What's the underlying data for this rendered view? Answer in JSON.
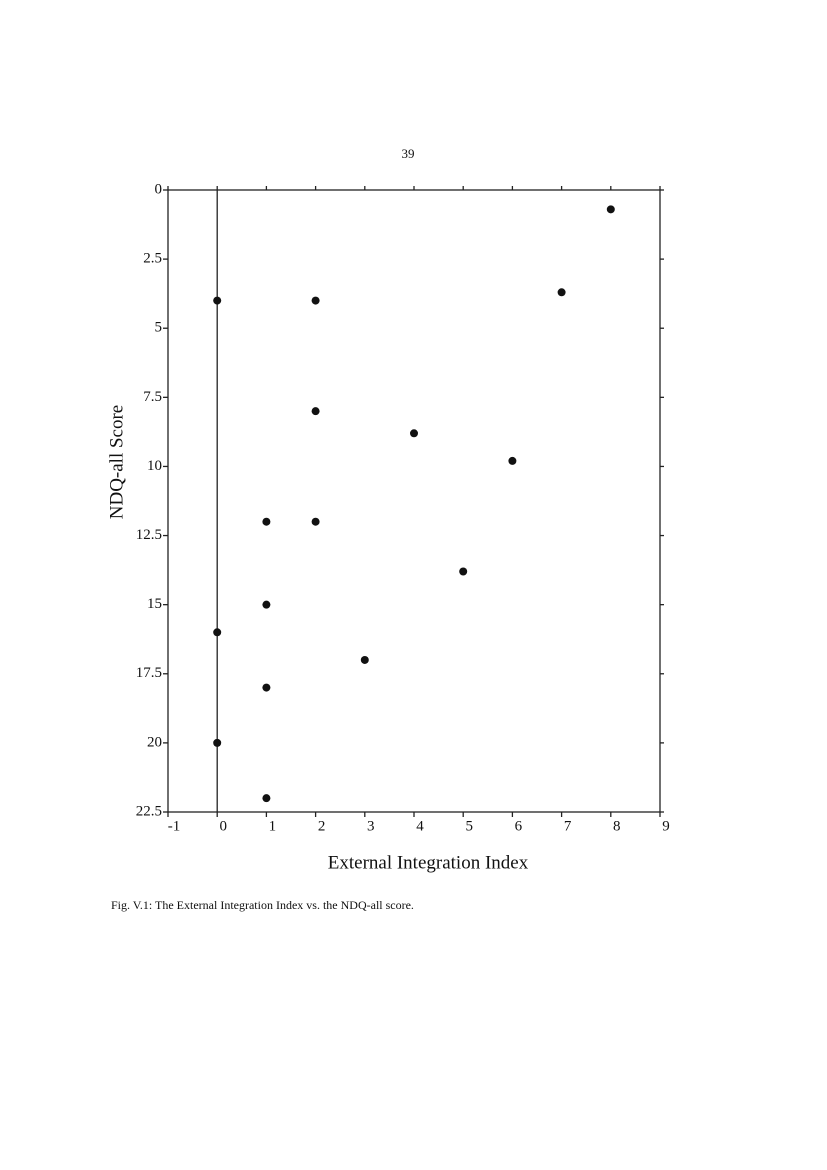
{
  "page_number": "39",
  "caption": "Fig. V.1:  The External Integration Index vs. the NDQ-all score.",
  "chart_data": {
    "type": "scatter",
    "x_label": "External Integration Index",
    "y_label": "NDQ-all Score",
    "x": [
      0,
      2,
      8,
      7,
      2,
      4,
      6,
      1,
      2,
      5,
      1,
      0,
      3,
      1,
      0,
      1
    ],
    "values": [
      4,
      4,
      0.7,
      3.7,
      8,
      8.8,
      9.8,
      12,
      12,
      13.8,
      15,
      16,
      17,
      18,
      20,
      22
    ],
    "color": "#111111",
    "xlim": [
      -1,
      9
    ],
    "xticks": [
      -1,
      0,
      1,
      2,
      3,
      4,
      5,
      6,
      7,
      8,
      9
    ],
    "ylim": [
      0,
      22.5
    ],
    "yticks": [
      0,
      2.5,
      5,
      7.5,
      10,
      12.5,
      15,
      17.5,
      20,
      22.5
    ],
    "y_inverted": true,
    "vlines": [
      0
    ]
  }
}
